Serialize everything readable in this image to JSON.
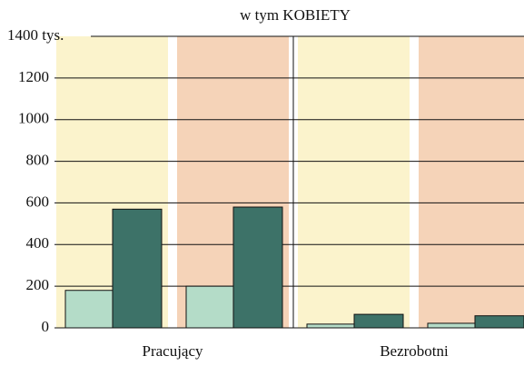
{
  "chart_data": {
    "type": "grouped_bar",
    "title": "w tym KOBIETY",
    "groups": [
      "Pracujący",
      "Bezrobotni"
    ],
    "categories": [
      null,
      null,
      null,
      null
    ],
    "band_colors": [
      "#fbf3cc",
      "#f5d3b8",
      "#fbf3cc",
      "#f5d3b8"
    ],
    "series": [
      {
        "color": "#b4dcc8",
        "values": [
          180,
          200,
          18,
          22
        ]
      },
      {
        "color": "#3d7268",
        "values": [
          570,
          580,
          65,
          58
        ]
      }
    ],
    "ylim": [
      0,
      1400
    ],
    "yticks": [
      0,
      200,
      400,
      600,
      800,
      1000,
      1200,
      {
        "value": 1400,
        "label": "1400 tys."
      }
    ],
    "grid": true
  }
}
